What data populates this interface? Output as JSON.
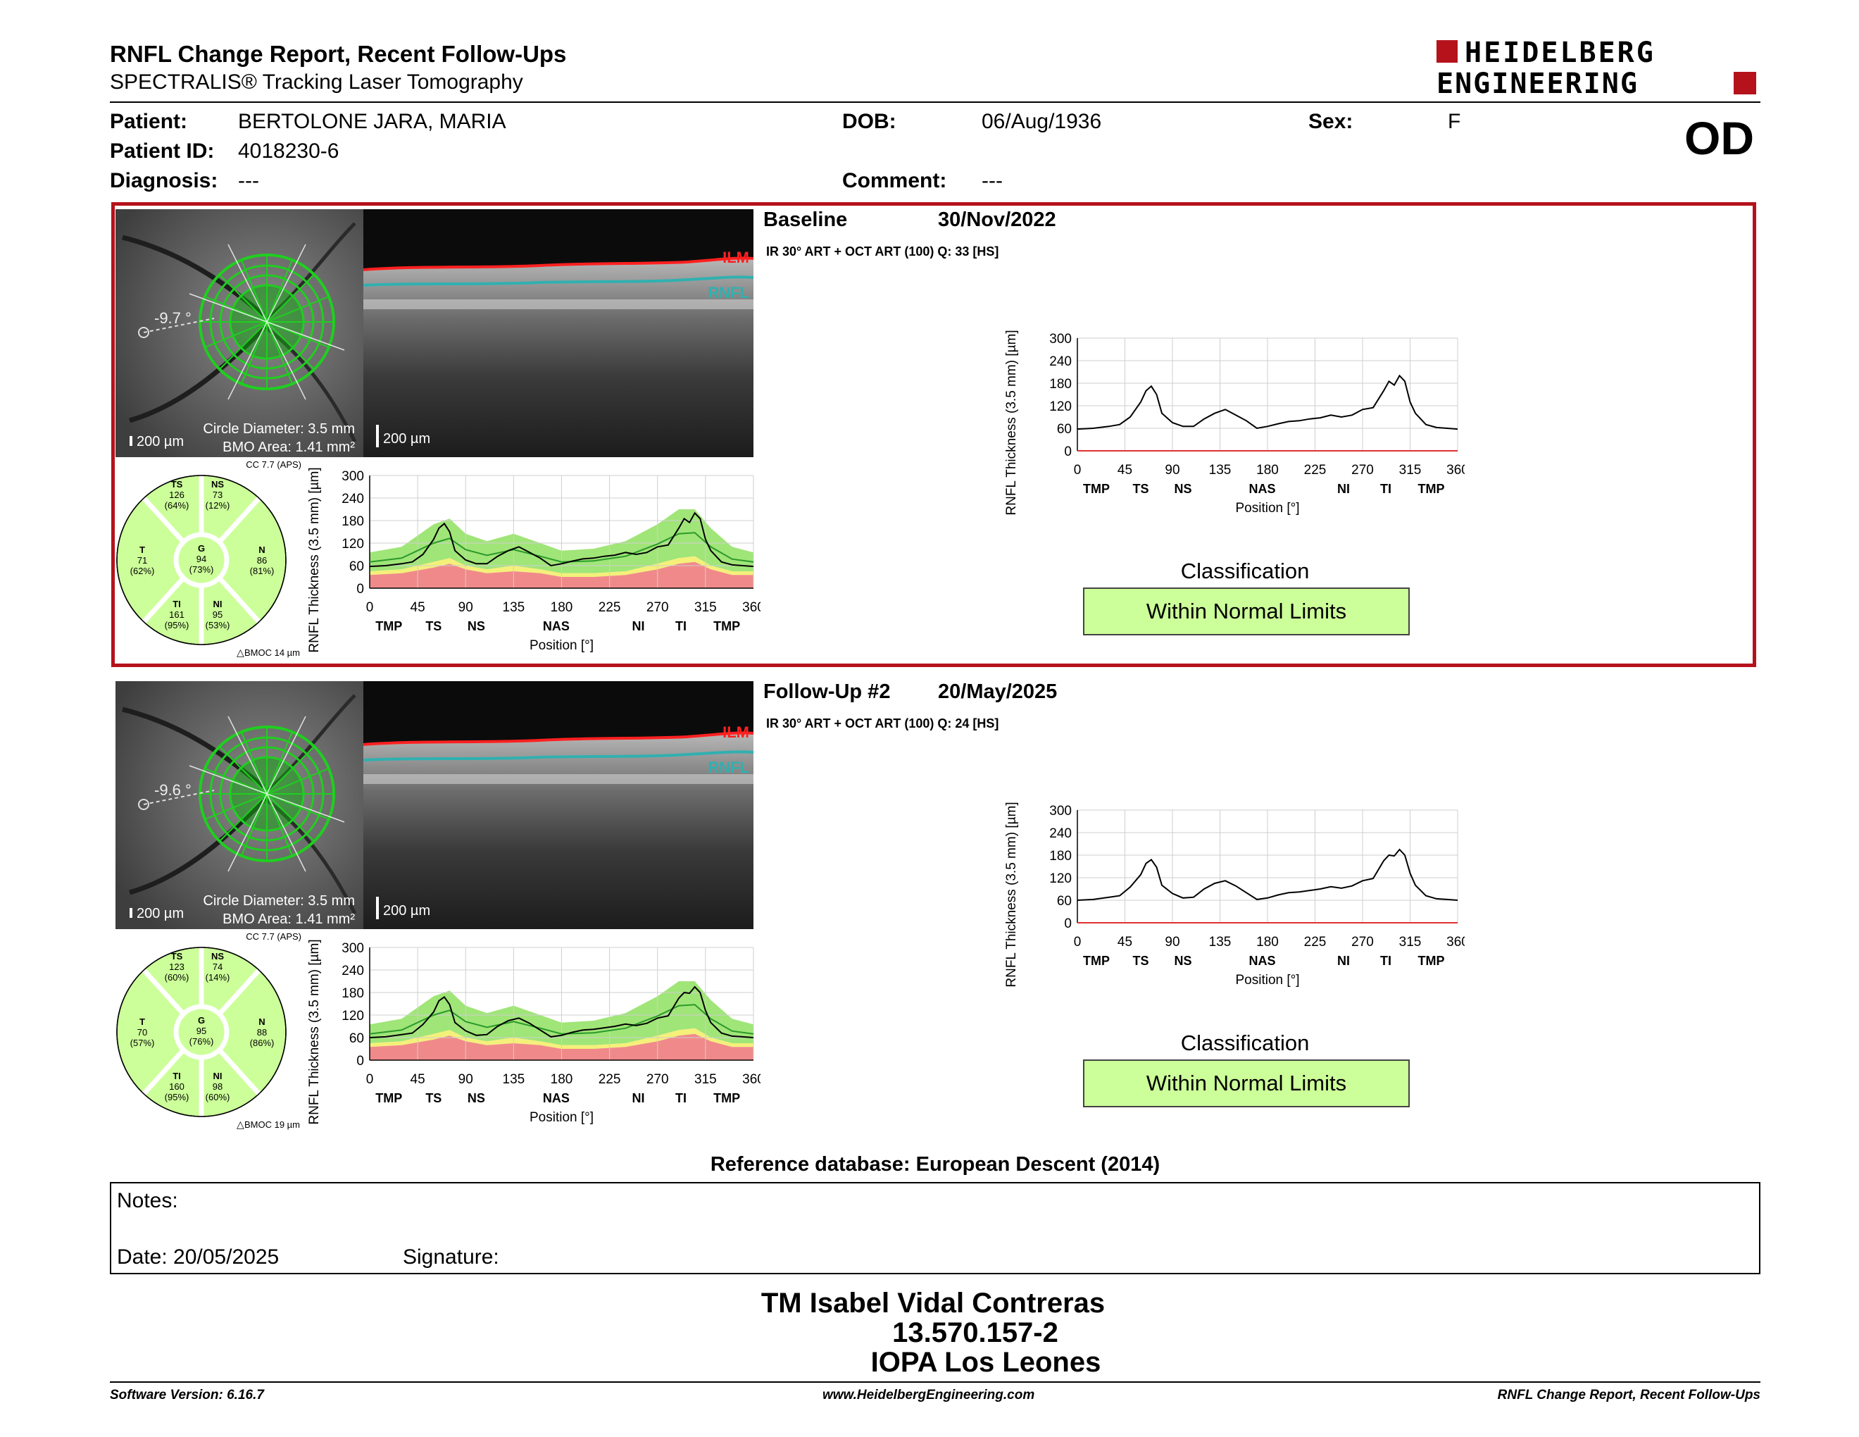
{
  "report": {
    "title": "RNFL Change Report, Recent Follow-Ups",
    "subtitle": "SPECTRALIS® Tracking Laser Tomography",
    "brand_line1": "HEIDELBERG",
    "brand_line2": "ENGINEERING",
    "eye": "OD"
  },
  "patient": {
    "name_label": "Patient:",
    "name": "BERTOLONE JARA, MARIA",
    "id_label": "Patient ID:",
    "id": "4018230-6",
    "diagnosis_label": "Diagnosis:",
    "diagnosis": "---",
    "dob_label": "DOB:",
    "dob": "06/Aug/1936",
    "comment_label": "Comment:",
    "comment": "---",
    "sex_label": "Sex:",
    "sex": "F"
  },
  "colors": {
    "accent_red": "#b5121b",
    "normal_green": "#ccff99",
    "band_green": "#8fe060",
    "band_yellow": "#f4f07a",
    "band_red": "#f08a8a"
  },
  "exams": [
    {
      "title": "Baseline",
      "date": "30/Nov/2022",
      "scan_info": "IR 30° ART + OCT ART (100) Q: 33 [HS]",
      "angle": "-9.7 °",
      "scale": "200 µm",
      "circle_diameter": "Circle Diameter: 3.5 mm",
      "bmo_area": "BMO Area: 1.41 mm²",
      "bscan_scale": "200 µm",
      "ilm": "ILM",
      "rnfl": "RNFL",
      "cc": "CC 7.7 (APS)",
      "bmoc": "BMOC 14 µm",
      "sectors": {
        "TS": {
          "value": "126",
          "pct": "(64%)"
        },
        "NS": {
          "value": "73",
          "pct": "(12%)"
        },
        "T": {
          "value": "71",
          "pct": "(62%)"
        },
        "G": {
          "value": "94",
          "pct": "(73%)"
        },
        "N": {
          "value": "86",
          "pct": "(81%)"
        },
        "TI": {
          "value": "161",
          "pct": "(95%)"
        },
        "NI": {
          "value": "95",
          "pct": "(53%)"
        }
      },
      "classification_title": "Classification",
      "classification": "Within Normal Limits"
    },
    {
      "title": "Follow-Up #2",
      "date": "20/May/2025",
      "scan_info": "IR 30° ART + OCT ART (100) Q: 24 [HS]",
      "angle": "-9.6 °",
      "scale": "200 µm",
      "circle_diameter": "Circle Diameter: 3.5 mm",
      "bmo_area": "BMO Area: 1.41 mm²",
      "bscan_scale": "200 µm",
      "ilm": "ILM",
      "rnfl": "RNFL",
      "cc": "CC 7.7 (APS)",
      "bmoc": "BMOC 19 µm",
      "sectors": {
        "TS": {
          "value": "123",
          "pct": "(60%)"
        },
        "NS": {
          "value": "74",
          "pct": "(14%)"
        },
        "T": {
          "value": "70",
          "pct": "(57%)"
        },
        "G": {
          "value": "95",
          "pct": "(76%)"
        },
        "N": {
          "value": "88",
          "pct": "(86%)"
        },
        "TI": {
          "value": "160",
          "pct": "(95%)"
        },
        "NI": {
          "value": "98",
          "pct": "(60%)"
        }
      },
      "classification_title": "Classification",
      "classification": "Within Normal Limits"
    }
  ],
  "chart_data": [
    {
      "type": "line",
      "title": "",
      "ylabel": "RNFL Thickness (3.5 mm) [µm]",
      "xlabel": "Position [°]",
      "xlim": [
        0,
        360
      ],
      "ylim": [
        0,
        300
      ],
      "xticks": [
        0,
        45,
        90,
        135,
        180,
        225,
        270,
        315,
        360
      ],
      "yticks": [
        0,
        60,
        120,
        180,
        240,
        300
      ],
      "sector_labels": [
        {
          "label": "TMP",
          "x": 18
        },
        {
          "label": "TS",
          "x": 60
        },
        {
          "label": "NS",
          "x": 100
        },
        {
          "label": "NAS",
          "x": 175
        },
        {
          "label": "NI",
          "x": 252
        },
        {
          "label": "TI",
          "x": 292
        },
        {
          "label": "TMP",
          "x": 335
        }
      ],
      "x": [
        0,
        15,
        30,
        40,
        50,
        60,
        65,
        70,
        75,
        80,
        90,
        100,
        110,
        120,
        130,
        140,
        150,
        160,
        170,
        180,
        190,
        200,
        210,
        220,
        230,
        240,
        250,
        260,
        270,
        280,
        290,
        295,
        300,
        305,
        310,
        315,
        320,
        330,
        340,
        350,
        360
      ],
      "series": [
        {
          "values": [
            58,
            60,
            65,
            70,
            90,
            130,
            160,
            172,
            150,
            100,
            75,
            65,
            65,
            85,
            100,
            110,
            95,
            80,
            60,
            65,
            72,
            78,
            80,
            85,
            88,
            95,
            90,
            95,
            110,
            115,
            160,
            185,
            175,
            200,
            185,
            130,
            100,
            70,
            62,
            60,
            58
          ]
        }
      ]
    },
    {
      "type": "line",
      "title": "",
      "ylabel": "RNFL Thickness (3.5 mm) [µm]",
      "xlabel": "Position [°]",
      "xlim": [
        0,
        360
      ],
      "ylim": [
        0,
        300
      ],
      "xticks": [
        0,
        45,
        90,
        135,
        180,
        225,
        270,
        315,
        360
      ],
      "yticks": [
        0,
        60,
        120,
        180,
        240,
        300
      ],
      "sector_labels": [
        {
          "label": "TMP",
          "x": 18
        },
        {
          "label": "TS",
          "x": 60
        },
        {
          "label": "NS",
          "x": 100
        },
        {
          "label": "NAS",
          "x": 175
        },
        {
          "label": "NI",
          "x": 252
        },
        {
          "label": "TI",
          "x": 292
        },
        {
          "label": "TMP",
          "x": 335
        }
      ],
      "x": [
        0,
        15,
        30,
        40,
        50,
        60,
        65,
        70,
        75,
        80,
        90,
        100,
        110,
        120,
        130,
        140,
        150,
        160,
        170,
        180,
        190,
        200,
        210,
        220,
        230,
        240,
        250,
        260,
        270,
        280,
        290,
        295,
        300,
        305,
        310,
        315,
        320,
        330,
        340,
        350,
        360
      ],
      "series": [
        {
          "values": [
            60,
            62,
            68,
            72,
            95,
            128,
            158,
            168,
            148,
            100,
            78,
            66,
            68,
            90,
            105,
            112,
            98,
            80,
            62,
            66,
            74,
            80,
            82,
            86,
            90,
            96,
            92,
            98,
            112,
            118,
            165,
            180,
            178,
            195,
            180,
            132,
            100,
            72,
            64,
            62,
            60
          ]
        }
      ]
    },
    {
      "type": "area",
      "title": "",
      "ylabel": "RNFL Thickness (3.5 mm) [µm]",
      "xlabel": "Position [°]",
      "xlim": [
        0,
        360
      ],
      "ylim": [
        0,
        300
      ],
      "xticks": [
        0,
        45,
        90,
        135,
        180,
        225,
        270,
        315,
        360
      ],
      "yticks": [
        0,
        60,
        120,
        180,
        240,
        300
      ],
      "sector_labels": [
        {
          "label": "TMP",
          "x": 18
        },
        {
          "label": "TS",
          "x": 60
        },
        {
          "label": "NS",
          "x": 100
        },
        {
          "label": "NAS",
          "x": 175
        },
        {
          "label": "NI",
          "x": 252
        },
        {
          "label": "TI",
          "x": 292
        },
        {
          "label": "TMP",
          "x": 335
        }
      ],
      "x": [
        0,
        30,
        60,
        75,
        90,
        110,
        135,
        160,
        180,
        210,
        240,
        270,
        290,
        305,
        320,
        340,
        360
      ],
      "bands": {
        "upper_normal": [
          95,
          110,
          170,
          185,
          145,
          125,
          145,
          120,
          100,
          105,
          125,
          170,
          210,
          210,
          160,
          110,
          95
        ],
        "lower_normal": [
          45,
          50,
          70,
          80,
          60,
          50,
          60,
          50,
          40,
          40,
          45,
          65,
          80,
          85,
          60,
          45,
          45
        ],
        "lower_borderline": [
          35,
          40,
          55,
          65,
          50,
          40,
          45,
          40,
          30,
          30,
          35,
          50,
          65,
          70,
          50,
          35,
          35
        ]
      }
    }
  ],
  "reference_db": "Reference database: European Descent (2014)",
  "notes": {
    "label": "Notes:",
    "date_label": "Date: 20/05/2025",
    "signature_label": "Signature:"
  },
  "signature_block": {
    "name": "TM Isabel Vidal Contreras",
    "rut": "13.570.157-2",
    "clinic": "IOPA Los Leones"
  },
  "footer": {
    "version": "Software Version: 6.16.7",
    "website": "www.HeidelbergEngineering.com",
    "report_name": "RNFL Change Report, Recent Follow-Ups"
  }
}
